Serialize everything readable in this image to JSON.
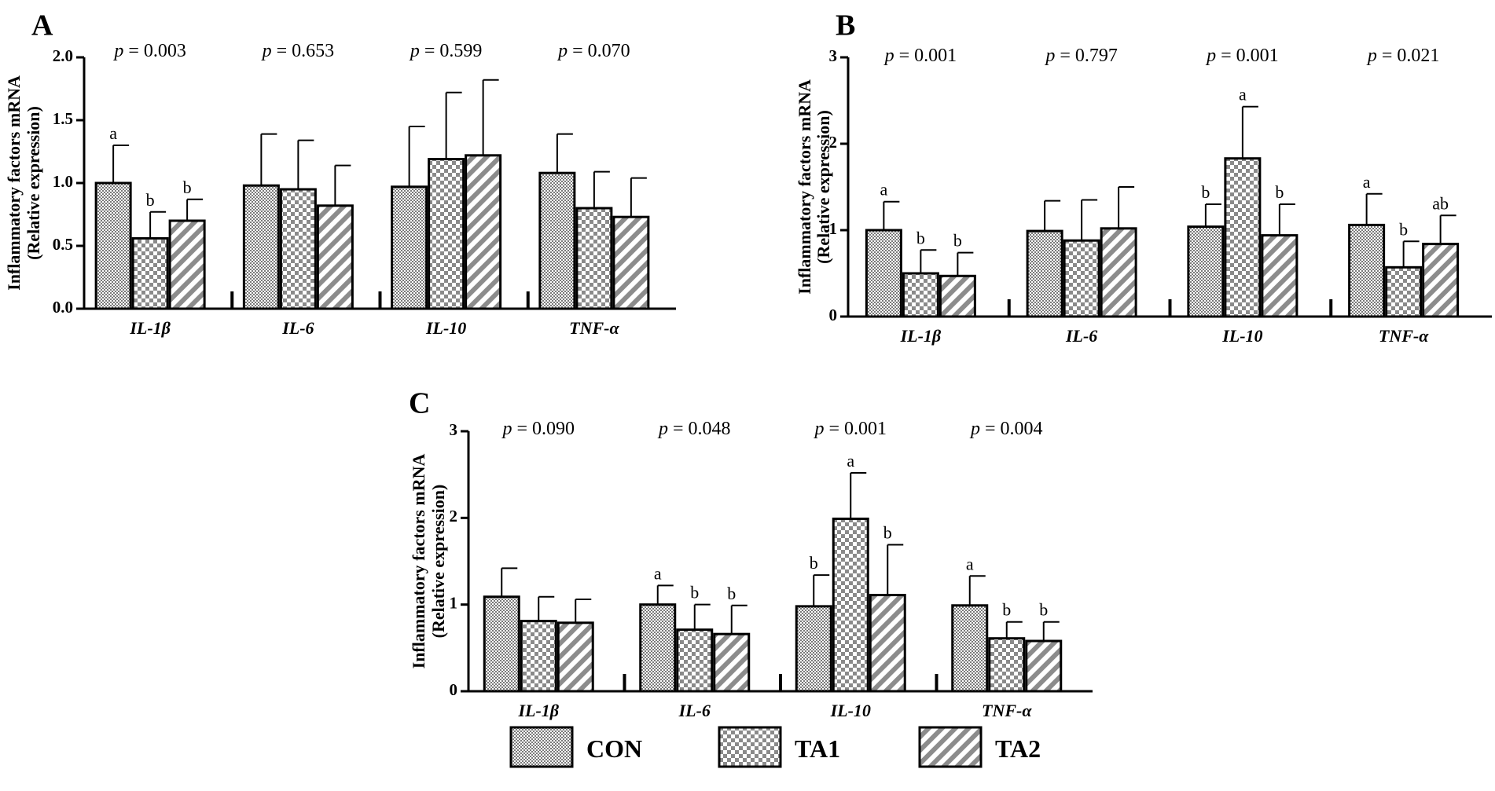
{
  "colors": {
    "ink": "#000000",
    "con_fill": "#cfcfcf",
    "ta1_fill": "#a8a8a8",
    "ta2_fill": "#8c8c8c",
    "background": "#ffffff"
  },
  "chart_data": [
    {
      "type": "bar",
      "panel": "A",
      "ylabel_line1": "Inflammatory factors mRNA",
      "ylabel_line2": "(Relative expression)",
      "ylim": [
        0,
        2.0
      ],
      "yticks": [
        0,
        0.5,
        1.0,
        1.5,
        2.0
      ],
      "ytick_labels": [
        "0.0",
        "0.5",
        "1.0",
        "1.5",
        "2.0"
      ],
      "categories": [
        "IL-1β",
        "IL-6",
        "IL-10",
        "TNF-α"
      ],
      "pvalues": [
        {
          "prefix": "p",
          "text": " = 0.003"
        },
        {
          "prefix": "p",
          "text": " = 0.653"
        },
        {
          "prefix": "p",
          "text": " = 0.599"
        },
        {
          "prefix": "p",
          "text": " = 0.070"
        }
      ],
      "series": [
        {
          "name": "CON",
          "values": [
            1.0,
            0.98,
            0.97,
            1.08
          ],
          "errors": [
            0.3,
            0.41,
            0.48,
            0.31
          ],
          "letters": [
            "a",
            "",
            "",
            ""
          ]
        },
        {
          "name": "TA1",
          "values": [
            0.56,
            0.95,
            1.19,
            0.8
          ],
          "errors": [
            0.21,
            0.39,
            0.53,
            0.29
          ],
          "letters": [
            "b",
            "",
            "",
            ""
          ]
        },
        {
          "name": "TA2",
          "values": [
            0.7,
            0.82,
            1.22,
            0.73
          ],
          "errors": [
            0.17,
            0.32,
            0.6,
            0.31
          ],
          "letters": [
            "b",
            "",
            "",
            ""
          ]
        }
      ]
    },
    {
      "type": "bar",
      "panel": "B",
      "ylabel_line1": "Inflammatory factors mRNA",
      "ylabel_line2": "(Relative expression)",
      "ylim": [
        0,
        3
      ],
      "yticks": [
        0,
        1,
        2,
        3
      ],
      "ytick_labels": [
        "0",
        "1",
        "2",
        "3"
      ],
      "categories": [
        "IL-1β",
        "IL-6",
        "IL-10",
        "TNF-α"
      ],
      "pvalues": [
        {
          "prefix": "p",
          "text": " = 0.001"
        },
        {
          "prefix": "p",
          "text": " = 0.797"
        },
        {
          "prefix": "p",
          "text": " = 0.001"
        },
        {
          "prefix": "p",
          "text": " = 0.021"
        }
      ],
      "series": [
        {
          "name": "CON",
          "values": [
            1.0,
            0.99,
            1.04,
            1.06
          ],
          "errors": [
            0.33,
            0.35,
            0.26,
            0.36
          ],
          "letters": [
            "a",
            "",
            "b",
            "a"
          ]
        },
        {
          "name": "TA1",
          "values": [
            0.5,
            0.88,
            1.83,
            0.57
          ],
          "errors": [
            0.27,
            0.47,
            0.6,
            0.3
          ],
          "letters": [
            "b",
            "",
            "a",
            "b"
          ]
        },
        {
          "name": "TA2",
          "values": [
            0.47,
            1.02,
            0.94,
            0.84
          ],
          "errors": [
            0.27,
            0.48,
            0.36,
            0.33
          ],
          "letters": [
            "b",
            "",
            "b",
            "ab"
          ]
        }
      ]
    },
    {
      "type": "bar",
      "panel": "C",
      "ylabel_line1": "Inflammatory factors mRNA",
      "ylabel_line2": "(Relative expression)",
      "ylim": [
        0,
        3
      ],
      "yticks": [
        0,
        1,
        2,
        3
      ],
      "ytick_labels": [
        "0",
        "1",
        "2",
        "3"
      ],
      "categories": [
        "IL-1β",
        "IL-6",
        "IL-10",
        "TNF-α"
      ],
      "pvalues": [
        {
          "prefix": "p",
          "text": " = 0.090"
        },
        {
          "prefix": "p",
          "text": " = 0.048"
        },
        {
          "prefix": "p",
          "text": " = 0.001"
        },
        {
          "prefix": "p",
          "text": " = 0.004"
        }
      ],
      "series": [
        {
          "name": "CON",
          "values": [
            1.09,
            1.0,
            0.98,
            0.99
          ],
          "errors": [
            0.33,
            0.22,
            0.36,
            0.34
          ],
          "letters": [
            "",
            "a",
            "b",
            "a"
          ]
        },
        {
          "name": "TA1",
          "values": [
            0.81,
            0.71,
            1.99,
            0.61
          ],
          "errors": [
            0.28,
            0.29,
            0.53,
            0.19
          ],
          "letters": [
            "",
            "b",
            "a",
            "b"
          ]
        },
        {
          "name": "TA2",
          "values": [
            0.79,
            0.66,
            1.11,
            0.58
          ],
          "errors": [
            0.27,
            0.33,
            0.58,
            0.22
          ],
          "letters": [
            "",
            "b",
            "b",
            "b"
          ]
        }
      ]
    }
  ],
  "legend": [
    {
      "name": "CON"
    },
    {
      "name": "TA1"
    },
    {
      "name": "TA2"
    }
  ]
}
